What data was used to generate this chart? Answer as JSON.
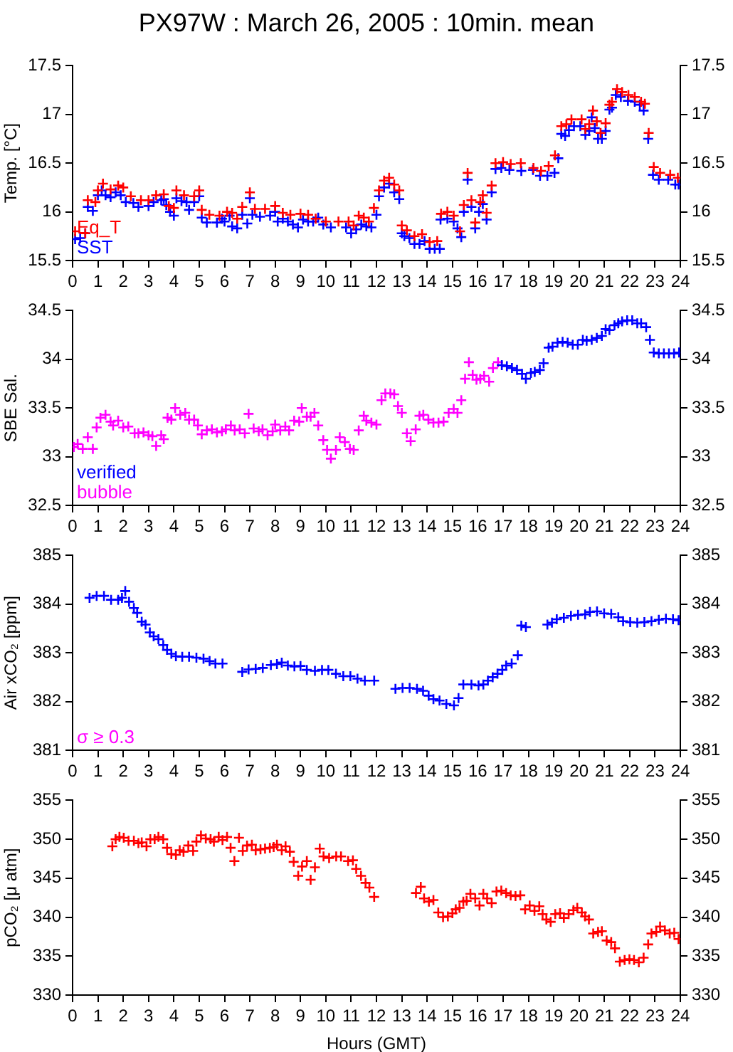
{
  "chart_data": [
    {
      "type": "scatter",
      "title": "PX97W : March 26, 2005 : 10min. mean",
      "ylabel": "Temp. [°C]",
      "xlim": [
        0,
        24
      ],
      "xticks": [
        0,
        1,
        2,
        3,
        4,
        5,
        6,
        7,
        8,
        9,
        10,
        11,
        12,
        13,
        14,
        15,
        16,
        17,
        18,
        19,
        20,
        21,
        22,
        23,
        24
      ],
      "ylim": [
        15.5,
        17.5
      ],
      "yticks": [
        15.5,
        16,
        16.5,
        17,
        17.5
      ],
      "y2lim": [
        15.5,
        17.5
      ],
      "y2ticks": [
        15.5,
        16,
        16.5,
        17,
        17.5
      ],
      "legend": "bottom left",
      "marker": "cross",
      "series": [
        {
          "name": "Eq_T",
          "color": "#ff0000",
          "x": [
            0.1,
            0.5,
            0.6,
            0.9,
            1.0,
            1.2,
            1.5,
            1.8,
            2.0,
            2.3,
            2.7,
            3.0,
            3.3,
            3.6,
            3.8,
            4.0,
            4.1,
            4.4,
            4.8,
            5.0,
            5.1,
            5.4,
            5.8,
            6.1,
            6.3,
            6.5,
            6.7,
            7.0,
            7.2,
            7.6,
            8.0,
            8.3,
            8.6,
            9.0,
            9.3,
            9.6,
            10.0,
            10.5,
            10.9,
            11.1,
            11.3,
            11.5,
            11.7,
            11.9,
            12.1,
            12.3,
            12.5,
            12.7,
            12.9,
            13.0,
            13.2,
            13.5,
            13.8,
            14.1,
            14.4,
            14.55,
            14.8,
            15.05,
            15.3,
            15.45,
            15.6,
            15.75,
            15.9,
            16.1,
            16.2,
            16.35,
            16.55,
            16.7,
            17.0,
            17.3,
            17.7,
            18.2,
            18.5,
            18.8,
            19.05,
            19.3,
            19.5,
            19.7,
            20.1,
            20.25,
            20.4,
            20.55,
            20.7,
            20.85,
            21.05,
            21.2,
            21.3,
            21.5,
            21.7,
            21.95,
            22.2,
            22.45,
            22.6,
            22.75,
            22.95,
            23.2,
            23.6,
            23.9
          ],
          "values": [
            15.8,
            15.78,
            16.12,
            16.1,
            16.22,
            16.29,
            16.23,
            16.27,
            16.25,
            16.16,
            16.12,
            16.12,
            16.17,
            16.18,
            16.06,
            16.04,
            16.22,
            16.17,
            16.16,
            16.22,
            16.02,
            15.97,
            15.96,
            16.0,
            15.99,
            15.93,
            16.05,
            16.2,
            16.03,
            16.03,
            16.06,
            15.99,
            15.97,
            15.98,
            15.97,
            15.93,
            15.9,
            15.9,
            15.9,
            15.86,
            15.96,
            15.94,
            15.9,
            16.04,
            16.22,
            16.32,
            16.35,
            16.28,
            16.22,
            15.86,
            15.81,
            15.75,
            15.77,
            15.69,
            15.7,
            15.98,
            16.0,
            15.96,
            15.8,
            16.07,
            16.4,
            16.12,
            15.89,
            16.1,
            16.17,
            15.99,
            16.27,
            16.5,
            16.51,
            16.49,
            16.5,
            16.45,
            16.42,
            16.47,
            16.58,
            16.88,
            16.9,
            16.95,
            16.95,
            16.85,
            16.9,
            17.04,
            16.93,
            16.81,
            16.91,
            17.1,
            17.13,
            17.26,
            17.23,
            17.2,
            17.18,
            17.13,
            17.11,
            16.81,
            16.46,
            16.4,
            16.38,
            16.35
          ]
        },
        {
          "name": "SST",
          "color": "#0000ff",
          "x": [
            0.1,
            0.3,
            0.5,
            0.6,
            0.8,
            1.0,
            1.15,
            1.3,
            1.5,
            1.7,
            1.9,
            2.1,
            2.4,
            2.6,
            3.0,
            3.2,
            3.5,
            3.6,
            3.7,
            3.85,
            4.0,
            4.1,
            4.3,
            4.5,
            4.6,
            4.8,
            5.0,
            5.1,
            5.3,
            5.7,
            5.9,
            6.0,
            6.2,
            6.3,
            6.5,
            6.7,
            6.9,
            7.0,
            7.1,
            7.4,
            7.8,
            8.0,
            8.1,
            8.3,
            8.5,
            8.7,
            8.9,
            9.1,
            9.3,
            9.5,
            9.7,
            9.9,
            10.2,
            10.8,
            11.0,
            11.2,
            11.4,
            11.6,
            11.8,
            12.0,
            12.1,
            12.3,
            12.5,
            12.7,
            12.9,
            13.0,
            13.1,
            13.3,
            13.5,
            13.7,
            13.9,
            14.1,
            14.3,
            14.5,
            14.53,
            14.8,
            15.05,
            15.2,
            15.35,
            15.45,
            15.6,
            15.75,
            15.9,
            16.05,
            16.2,
            16.35,
            16.55,
            16.7,
            16.93,
            17.25,
            17.72,
            18.18,
            18.46,
            18.75,
            19.03,
            19.18,
            19.3,
            19.45,
            19.6,
            19.8,
            20.05,
            20.25,
            20.4,
            20.5,
            20.62,
            20.75,
            20.9,
            21.05,
            21.2,
            21.3,
            21.45,
            21.65,
            21.93,
            22.2,
            22.4,
            22.55,
            22.73,
            22.92,
            23.15,
            23.52,
            23.8,
            23.93
          ],
          "values": [
            15.72,
            15.73,
            15.78,
            16.05,
            16.01,
            16.17,
            16.22,
            16.17,
            16.15,
            16.2,
            16.17,
            16.1,
            16.09,
            16.05,
            16.06,
            16.1,
            16.12,
            16.13,
            16.07,
            16.0,
            15.96,
            16.14,
            16.11,
            16.1,
            16.02,
            16.1,
            16.16,
            15.94,
            15.89,
            15.89,
            15.93,
            15.9,
            15.96,
            15.85,
            15.83,
            15.97,
            15.88,
            16.14,
            15.97,
            15.95,
            15.96,
            16.0,
            15.9,
            15.93,
            15.9,
            15.87,
            15.84,
            15.92,
            15.9,
            15.9,
            15.94,
            15.87,
            15.84,
            15.84,
            15.78,
            15.82,
            15.87,
            15.85,
            15.84,
            15.97,
            16.16,
            16.25,
            16.29,
            16.2,
            16.13,
            15.78,
            15.75,
            15.73,
            15.67,
            15.67,
            15.7,
            15.62,
            15.62,
            15.62,
            15.92,
            15.93,
            15.9,
            15.83,
            15.74,
            16.0,
            16.33,
            16.05,
            15.83,
            16.0,
            16.08,
            15.92,
            16.2,
            16.44,
            16.45,
            16.43,
            16.42,
            16.43,
            16.37,
            16.37,
            16.4,
            16.55,
            16.8,
            16.78,
            16.84,
            16.88,
            16.88,
            16.79,
            16.83,
            16.97,
            16.86,
            16.75,
            16.75,
            16.83,
            17.05,
            17.07,
            17.2,
            17.18,
            17.14,
            17.13,
            17.1,
            17.04,
            16.75,
            16.38,
            16.33,
            16.33,
            16.28,
            16.28
          ]
        }
      ]
    },
    {
      "type": "scatter",
      "ylabel": "SBE Sal.",
      "xlim": [
        0,
        24
      ],
      "xticks": [
        0,
        1,
        2,
        3,
        4,
        5,
        6,
        7,
        8,
        9,
        10,
        11,
        12,
        13,
        14,
        15,
        16,
        17,
        18,
        19,
        20,
        21,
        22,
        23,
        24
      ],
      "ylim": [
        32.5,
        34.5
      ],
      "yticks": [
        32.5,
        33,
        33.5,
        34,
        34.5
      ],
      "y2lim": [
        32.5,
        34.5
      ],
      "y2ticks": [
        32.5,
        33,
        33.5,
        34,
        34.5
      ],
      "legend": "bottom left",
      "marker": "cross",
      "series": [
        {
          "name": "verified",
          "color": "#0000ff",
          "x": [
            16.95,
            17.15,
            17.35,
            17.55,
            17.75,
            17.9,
            18.1,
            18.25,
            18.45,
            18.6,
            18.8,
            18.95,
            19.15,
            19.35,
            19.55,
            19.75,
            19.95,
            20.15,
            20.3,
            20.5,
            20.7,
            20.9,
            21.05,
            21.2,
            21.4,
            21.55,
            21.7,
            21.9,
            22.1,
            22.3,
            22.45,
            22.65,
            22.8,
            22.95,
            23.15,
            23.35,
            23.55,
            23.75,
            23.95
          ],
          "values": [
            33.94,
            33.93,
            33.91,
            33.89,
            33.85,
            33.8,
            33.86,
            33.87,
            33.89,
            33.96,
            34.12,
            34.13,
            34.17,
            34.18,
            34.17,
            34.15,
            34.15,
            34.2,
            34.19,
            34.2,
            34.22,
            34.24,
            34.31,
            34.3,
            34.35,
            34.37,
            34.39,
            34.4,
            34.4,
            34.37,
            34.37,
            34.33,
            34.2,
            34.07,
            34.06,
            34.06,
            34.06,
            34.06,
            34.07
          ]
        },
        {
          "name": "bubble",
          "color": "#ff00ff",
          "x": [
            0.05,
            0.2,
            0.4,
            0.6,
            0.8,
            0.95,
            1.1,
            1.3,
            1.5,
            1.6,
            1.8,
            2.0,
            2.2,
            2.45,
            2.6,
            2.8,
            3.0,
            3.15,
            3.3,
            3.5,
            3.6,
            3.75,
            3.9,
            4.05,
            4.25,
            4.45,
            4.6,
            4.8,
            4.95,
            5.1,
            5.3,
            5.5,
            5.7,
            5.9,
            6.05,
            6.25,
            6.4,
            6.6,
            6.8,
            6.95,
            7.15,
            7.35,
            7.5,
            7.7,
            7.9,
            8.0,
            8.2,
            8.4,
            8.55,
            8.75,
            8.95,
            9.05,
            9.25,
            9.4,
            9.55,
            9.7,
            9.9,
            10.05,
            10.2,
            10.4,
            10.55,
            10.75,
            10.95,
            11.1,
            11.3,
            11.5,
            11.6,
            11.8,
            12.0,
            12.2,
            12.35,
            12.55,
            12.7,
            12.85,
            13.0,
            13.2,
            13.35,
            13.55,
            13.7,
            13.85,
            14.05,
            14.25,
            14.45,
            14.65,
            14.85,
            15.05,
            15.2,
            15.35,
            15.5,
            15.65,
            15.8,
            15.95,
            16.1,
            16.25,
            16.45,
            16.6,
            16.8
          ],
          "values": [
            33.1,
            33.13,
            33.08,
            33.2,
            33.08,
            33.3,
            33.4,
            33.43,
            33.36,
            33.32,
            33.37,
            33.3,
            33.31,
            33.24,
            33.24,
            33.25,
            33.22,
            33.21,
            33.11,
            33.22,
            33.18,
            33.4,
            33.38,
            33.5,
            33.43,
            33.45,
            33.38,
            33.38,
            33.32,
            33.23,
            33.27,
            33.28,
            33.25,
            33.26,
            33.28,
            33.32,
            33.27,
            33.28,
            33.24,
            33.44,
            33.29,
            33.26,
            33.28,
            33.22,
            33.26,
            33.33,
            33.27,
            33.31,
            33.27,
            33.37,
            33.36,
            33.5,
            33.41,
            33.41,
            33.45,
            33.32,
            33.17,
            33.07,
            32.98,
            33.07,
            33.2,
            33.15,
            33.08,
            33.07,
            33.27,
            33.42,
            33.37,
            33.35,
            33.33,
            33.58,
            33.65,
            33.65,
            33.64,
            33.52,
            33.45,
            33.24,
            33.16,
            33.28,
            33.42,
            33.43,
            33.38,
            33.35,
            33.35,
            33.36,
            33.45,
            33.49,
            33.45,
            33.58,
            33.8,
            33.97,
            33.84,
            33.79,
            33.8,
            33.83,
            33.77,
            33.91,
            33.97
          ]
        }
      ]
    },
    {
      "type": "scatter",
      "ylabel": "Air xCO₂ [ppm]",
      "xlim": [
        0,
        24
      ],
      "xticks": [
        0,
        1,
        2,
        3,
        4,
        5,
        6,
        7,
        8,
        9,
        10,
        11,
        12,
        13,
        14,
        15,
        16,
        17,
        18,
        19,
        20,
        21,
        22,
        23,
        24
      ],
      "ylim": [
        381,
        385
      ],
      "yticks": [
        381,
        382,
        383,
        384,
        385
      ],
      "y2lim": [
        381,
        385
      ],
      "y2ticks": [
        381,
        382,
        383,
        384,
        385
      ],
      "marker": "cross",
      "annotations": [
        "σ ≥ 0.3"
      ],
      "series": [
        {
          "color": "#0000ff",
          "x": [
            0.67,
            0.95,
            1.24,
            1.52,
            1.8,
            1.95,
            2.08,
            2.23,
            2.42,
            2.55,
            2.73,
            2.88,
            3.05,
            3.2,
            3.39,
            3.58,
            3.73,
            3.9,
            4.08,
            4.33,
            4.6,
            4.89,
            5.17,
            5.41,
            5.64,
            5.92,
            6.7,
            6.95,
            7.23,
            7.51,
            7.83,
            8.07,
            8.26,
            8.5,
            8.76,
            9.0,
            9.25,
            9.57,
            9.85,
            10.1,
            10.4,
            10.69,
            10.97,
            11.25,
            11.54,
            11.91,
            12.75,
            13.03,
            13.31,
            13.6,
            13.84,
            14.06,
            14.25,
            14.49,
            14.76,
            15.06,
            15.24,
            15.43,
            15.75,
            16.03,
            16.22,
            16.4,
            16.59,
            16.78,
            16.97,
            17.12,
            17.34,
            17.58,
            17.72,
            17.9,
            18.75,
            18.93,
            19.12,
            19.4,
            19.68,
            19.96,
            20.24,
            20.43,
            20.71,
            20.99,
            21.27,
            21.55,
            21.74,
            22.02,
            22.3,
            22.58,
            22.86,
            23.15,
            23.43,
            23.71,
            23.93
          ],
          "values": [
            384.13,
            384.17,
            384.17,
            384.09,
            384.09,
            384.13,
            384.27,
            384.05,
            383.92,
            383.82,
            383.64,
            383.58,
            383.42,
            383.34,
            383.28,
            383.16,
            383.06,
            382.98,
            382.93,
            382.92,
            382.92,
            382.9,
            382.88,
            382.83,
            382.78,
            382.78,
            382.61,
            382.66,
            382.67,
            382.69,
            382.75,
            382.77,
            382.8,
            382.74,
            382.72,
            382.73,
            382.65,
            382.63,
            382.65,
            382.65,
            382.57,
            382.52,
            382.52,
            382.47,
            382.43,
            382.43,
            382.26,
            382.28,
            382.28,
            382.26,
            382.22,
            382.12,
            382.05,
            382.02,
            381.95,
            381.92,
            382.07,
            382.35,
            382.35,
            382.33,
            382.35,
            382.43,
            382.5,
            382.57,
            382.65,
            382.74,
            382.78,
            382.95,
            383.56,
            383.53,
            383.58,
            383.62,
            383.69,
            383.72,
            383.76,
            383.78,
            383.79,
            383.84,
            383.85,
            383.81,
            383.8,
            383.73,
            383.65,
            383.63,
            383.62,
            383.63,
            383.65,
            383.68,
            383.7,
            383.69,
            383.67
          ]
        }
      ]
    },
    {
      "type": "scatter",
      "ylabel": "pCO₂ [μ atm]",
      "xlabel": "Hours (GMT)",
      "xlim": [
        0,
        24
      ],
      "xticks": [
        0,
        1,
        2,
        3,
        4,
        5,
        6,
        7,
        8,
        9,
        10,
        11,
        12,
        13,
        14,
        15,
        16,
        17,
        18,
        19,
        20,
        21,
        22,
        23,
        24
      ],
      "ylim": [
        330,
        355
      ],
      "yticks": [
        330,
        335,
        340,
        345,
        350,
        355
      ],
      "y2lim": [
        330,
        355
      ],
      "y2ticks": [
        330,
        335,
        340,
        345,
        350,
        355
      ],
      "marker": "cross",
      "series": [
        {
          "color": "#ff0000",
          "x": [
            1.57,
            1.7,
            1.85,
            2.02,
            2.21,
            2.42,
            2.6,
            2.73,
            2.92,
            3.07,
            3.24,
            3.39,
            3.58,
            3.73,
            3.9,
            4.08,
            4.23,
            4.38,
            4.57,
            4.76,
            4.89,
            5.07,
            5.26,
            5.45,
            5.58,
            5.77,
            5.92,
            6.1,
            6.24,
            6.39,
            6.57,
            6.72,
            6.89,
            7.08,
            7.23,
            7.42,
            7.6,
            7.79,
            7.94,
            8.07,
            8.26,
            8.41,
            8.58,
            8.73,
            8.91,
            9.06,
            9.25,
            9.4,
            9.57,
            9.76,
            9.91,
            10.13,
            10.41,
            10.6,
            10.88,
            11.07,
            11.2,
            11.39,
            11.57,
            11.72,
            11.91,
            13.56,
            13.75,
            13.88,
            14.07,
            14.25,
            14.44,
            14.63,
            14.82,
            15.0,
            15.13,
            15.28,
            15.43,
            15.56,
            15.71,
            15.9,
            16.07,
            16.22,
            16.37,
            16.55,
            16.74,
            16.93,
            17.12,
            17.3,
            17.49,
            17.68,
            17.87,
            18.05,
            18.24,
            18.43,
            18.56,
            18.71,
            18.88,
            19.06,
            19.25,
            19.4,
            19.59,
            19.78,
            19.93,
            20.11,
            20.24,
            20.39,
            20.56,
            20.75,
            20.9,
            21.09,
            21.27,
            21.42,
            21.61,
            21.8,
            21.99,
            22.17,
            22.36,
            22.55,
            22.73,
            22.86,
            23.05,
            23.2,
            23.39,
            23.58,
            23.76,
            23.93
          ],
          "values": [
            349.1,
            350.0,
            350.3,
            350.2,
            349.8,
            349.8,
            349.5,
            349.6,
            349.1,
            350.0,
            350.0,
            350.3,
            350.0,
            348.9,
            348.1,
            348.0,
            348.6,
            348.4,
            349.2,
            348.5,
            349.7,
            350.5,
            350.1,
            350.0,
            349.7,
            350.3,
            349.9,
            350.3,
            348.9,
            347.2,
            350.2,
            348.5,
            349.2,
            349.3,
            348.6,
            348.7,
            348.8,
            348.9,
            349.0,
            349.3,
            348.6,
            349.1,
            348.4,
            347.1,
            345.3,
            346.5,
            347.2,
            344.8,
            346.4,
            348.8,
            347.8,
            347.6,
            347.8,
            347.8,
            347.2,
            347.3,
            346.2,
            345.3,
            344.4,
            343.8,
            342.6,
            343.1,
            343.9,
            342.4,
            342.0,
            342.2,
            340.6,
            340.0,
            340.1,
            340.5,
            341.0,
            341.2,
            342.0,
            342.1,
            343.0,
            342.4,
            341.5,
            343.0,
            342.4,
            341.8,
            343.3,
            343.4,
            343.1,
            342.8,
            342.7,
            342.8,
            341.0,
            341.5,
            340.8,
            341.4,
            340.4,
            339.7,
            339.4,
            340.4,
            340.5,
            339.9,
            340.4,
            340.9,
            341.2,
            340.6,
            340.1,
            339.7,
            337.9,
            338.1,
            338.2,
            337.0,
            336.8,
            336.0,
            334.3,
            334.5,
            334.6,
            334.5,
            334.2,
            334.8,
            336.5,
            337.9,
            338.1,
            338.8,
            338.3,
            337.9,
            338.0,
            337.2
          ]
        }
      ]
    }
  ]
}
